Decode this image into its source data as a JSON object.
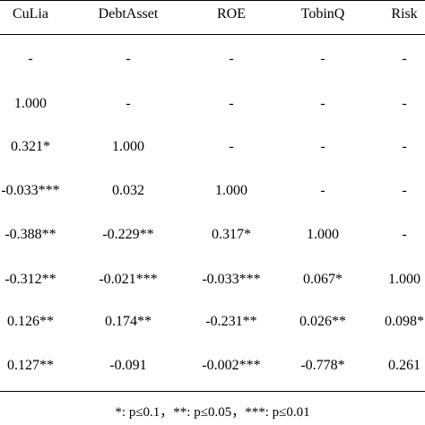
{
  "table": {
    "columns": [
      "CuLia",
      "DebtAsset",
      "ROE",
      "TobinQ",
      "Risk"
    ],
    "rows": [
      [
        "-",
        "-",
        "-",
        "-",
        "-"
      ],
      [
        "1.000",
        "-",
        "-",
        "-",
        "-"
      ],
      [
        "0.321*",
        "1.000",
        "-",
        "-",
        "-"
      ],
      [
        "-0.033***",
        "0.032",
        "1.000",
        "-",
        "-"
      ],
      [
        "-0.388**",
        "-0.229**",
        "0.317*",
        "1.000",
        "-"
      ],
      [
        "-0.312**",
        "-0.021***",
        "-0.033***",
        "0.067*",
        "1.000"
      ],
      [
        "0.126**",
        "0.174**",
        "-0.231**",
        "0.026**",
        "0.098*"
      ],
      [
        "0.127**",
        "-0.091",
        "-0.002***",
        "-0.778*",
        "0.261"
      ]
    ]
  },
  "footnote": "*: p≤0.1，**: p≤0.05，***: p≤0.01"
}
